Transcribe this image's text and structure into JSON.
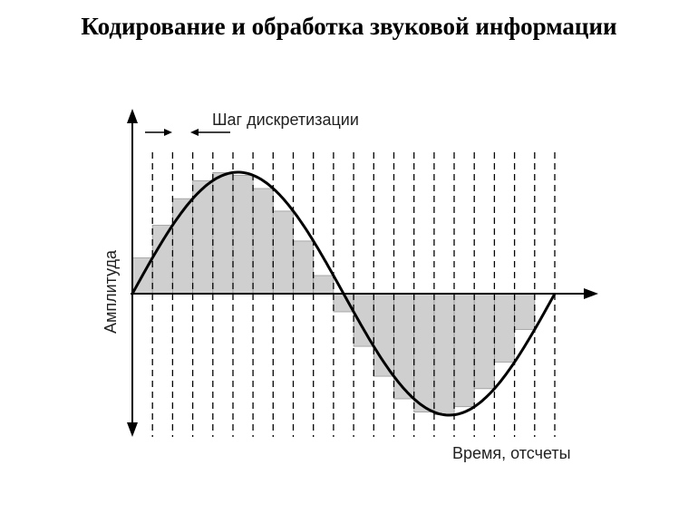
{
  "title": "Кодирование и обработка звуковой информации",
  "diagram": {
    "y_axis_label": "Амплитуда",
    "x_axis_label": "Время, отсчеты",
    "step_label": "Шаг дискретизации",
    "sample_count": 21,
    "waveform": "sine",
    "colors": {
      "bars": "#cfcfcf",
      "lines": "#000000"
    }
  }
}
